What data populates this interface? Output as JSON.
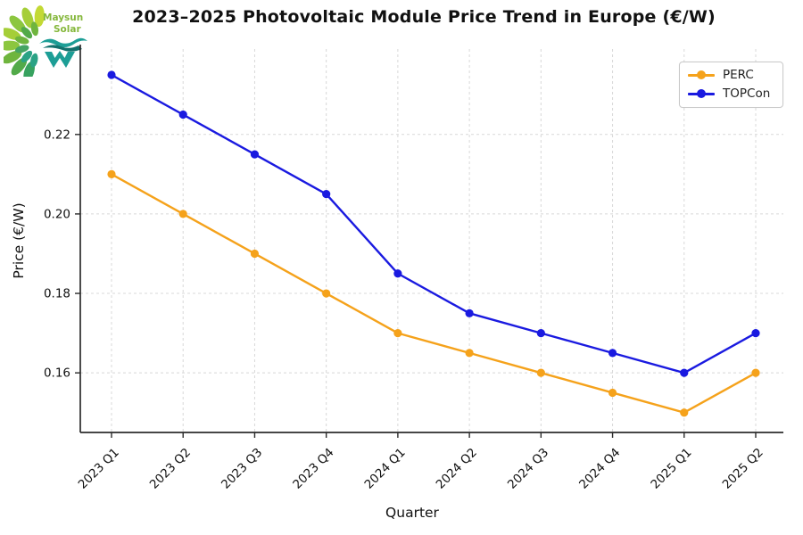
{
  "logo": {
    "line1": "Maysun",
    "line2": "Solar",
    "leaf_colors": [
      "#c3d934",
      "#a5ce38",
      "#8cc63f",
      "#6fb53e",
      "#52aa49",
      "#37a25f",
      "#2aa285",
      "#8cc63f",
      "#a5ce38",
      "#6fb53e",
      "#45a463",
      "#2aa285"
    ],
    "mark_color": "#1d9e96",
    "mark_color_dark": "#12716d",
    "text_color": "#86b83d"
  },
  "chart_data": {
    "type": "line",
    "title": "2023–2025 Photovoltaic Module Price Trend in Europe (€/W)",
    "xlabel": "Quarter",
    "ylabel": "Price (€/W)",
    "categories": [
      "2023 Q1",
      "2023 Q2",
      "2023 Q3",
      "2023 Q4",
      "2024 Q1",
      "2024 Q2",
      "2024 Q3",
      "2024 Q4",
      "2025 Q1",
      "2025 Q2"
    ],
    "series": [
      {
        "name": "PERC",
        "color": "#f5a21b",
        "values": [
          0.21,
          0.2,
          0.19,
          0.18,
          0.17,
          0.165,
          0.16,
          0.155,
          0.15,
          0.16
        ]
      },
      {
        "name": "TOPCon",
        "color": "#1a1ae0",
        "values": [
          0.235,
          0.225,
          0.215,
          0.205,
          0.185,
          0.175,
          0.17,
          0.165,
          0.16,
          0.17
        ]
      }
    ],
    "ylim": [
      0.145,
      0.2415
    ],
    "yticks": [
      0.16,
      0.18,
      0.2,
      0.22
    ],
    "grid": true,
    "grid_style": "dashed",
    "legend_position": "upper right",
    "marker": "circle"
  }
}
